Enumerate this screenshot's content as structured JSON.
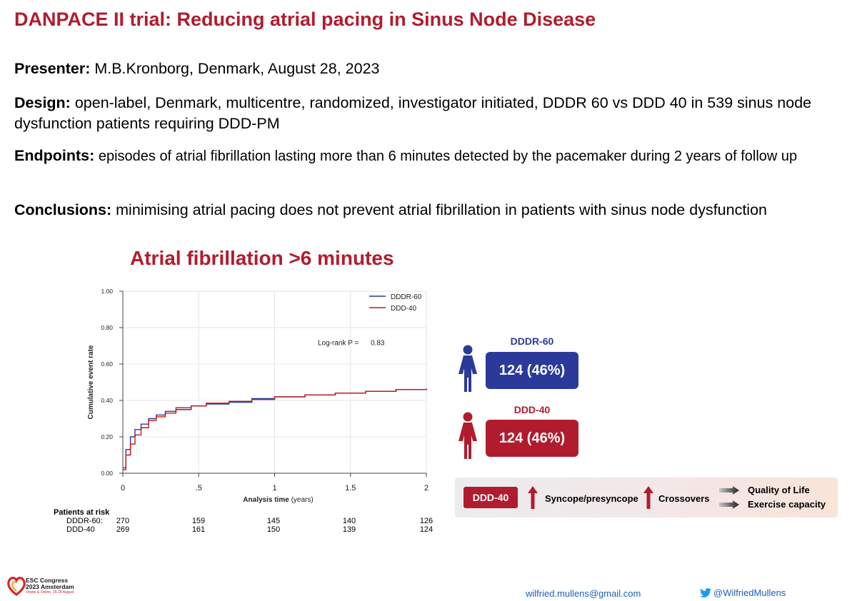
{
  "slide": {
    "title": "DANPACE II trial: Reducing atrial pacing in Sinus Node Disease",
    "presenter_label": "Presenter:",
    "presenter_text": " M.B.Kronborg, Denmark, August 28, 2023",
    "design_label": "Design:",
    "design_text": " open-label, Denmark, multicentre, randomized, investigator initiated, DDDR 60 vs DDD 40 in 539 sinus node dysfunction patients requiring DDD-PM",
    "endpoints_label": "Endpoints:",
    "endpoints_text": " episodes of atrial fibrillation lasting more than 6 minutes detected by the pacemaker during 2 years of follow up",
    "conclusions_label": "Conclusions:",
    "conclusions_text": " minimising atrial pacing does not prevent atrial fibrillation in patients with sinus node dysfunction",
    "chart_heading": "Atrial fibrillation >6 minutes"
  },
  "chart_data": {
    "type": "line",
    "xlabel": "Analysis time",
    "xlabel_unit": "(years)",
    "ylabel": "Cumulative event rate",
    "xlim": [
      0,
      2
    ],
    "ylim": [
      0,
      1
    ],
    "x_ticks": [
      "0",
      ".5",
      "1",
      "1.5",
      "2"
    ],
    "y_ticks": [
      "0.00",
      "0.20",
      "0.40",
      "0.60",
      "0.80",
      "1.00"
    ],
    "grid": true,
    "legend_position": "top-right",
    "annotation": {
      "label": "Log-rank P =",
      "value": "0.83"
    },
    "series": [
      {
        "name": "DDDR-60",
        "color": "#2b3a9a",
        "x": [
          0,
          0.02,
          0.05,
          0.08,
          0.12,
          0.17,
          0.22,
          0.28,
          0.35,
          0.45,
          0.55,
          0.7,
          0.85,
          1.0,
          1.2,
          1.4,
          1.6,
          1.8,
          2.0
        ],
        "y": [
          0.03,
          0.13,
          0.2,
          0.24,
          0.27,
          0.3,
          0.32,
          0.34,
          0.35,
          0.37,
          0.38,
          0.39,
          0.41,
          0.42,
          0.43,
          0.44,
          0.45,
          0.46,
          0.465
        ]
      },
      {
        "name": "DDD-40",
        "color": "#c0161f",
        "x": [
          0,
          0.02,
          0.05,
          0.08,
          0.12,
          0.17,
          0.22,
          0.28,
          0.35,
          0.45,
          0.55,
          0.7,
          0.85,
          1.0,
          1.2,
          1.4,
          1.6,
          1.8,
          2.0
        ],
        "y": [
          0.02,
          0.1,
          0.16,
          0.21,
          0.25,
          0.29,
          0.31,
          0.33,
          0.36,
          0.37,
          0.385,
          0.395,
          0.405,
          0.42,
          0.43,
          0.44,
          0.45,
          0.46,
          0.465
        ]
      }
    ],
    "risk_table": {
      "heading": "Patients at risk",
      "rows": [
        {
          "label": "DDDR-60:",
          "values": [
            "270",
            "159",
            "145",
            "140",
            "126"
          ]
        },
        {
          "label": "DDD-40",
          "values": [
            "269",
            "161",
            "150",
            "139",
            "124"
          ]
        }
      ]
    }
  },
  "arms": [
    {
      "name": "DDDR-60",
      "value": "124 (46%)",
      "color": "#2b3a9a",
      "icon": "female-person-icon"
    },
    {
      "name": "DDD-40",
      "value": "124 (46%)",
      "color": "#b01c2e",
      "icon": "female-person-icon"
    }
  ],
  "summary": {
    "arm": "DDD-40",
    "item1": "Syncope/presyncope",
    "item2": "Crossovers",
    "item3": "Quality of Life",
    "item4": "Exercise capacity"
  },
  "footer": {
    "email": "wilfried.mullens@gmail.com",
    "twitter": "@WilfriedMullens",
    "logo_line1": "ESC Congress",
    "logo_line2": "2023 Amsterdam",
    "logo_line3": "Onsite & Online, 25-28 August"
  }
}
